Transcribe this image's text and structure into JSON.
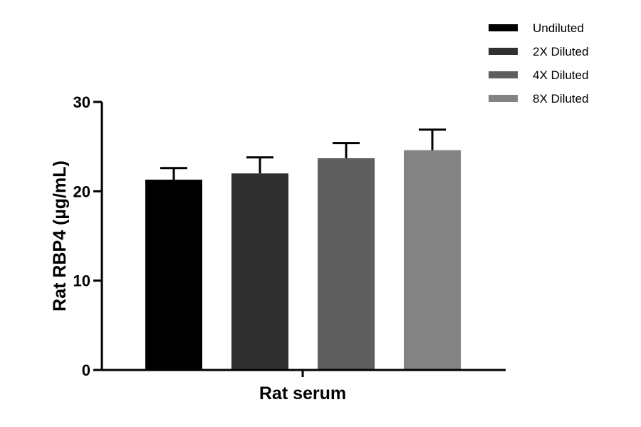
{
  "chart_data": {
    "type": "bar",
    "title": "",
    "xlabel": "Rat serum",
    "ylabel": "Rat RBP4 (µg/mL)",
    "ylim": [
      0,
      30
    ],
    "yticks": [
      0,
      10,
      20,
      30
    ],
    "grid": false,
    "legend_position": "top-right",
    "categories": [
      "Rat serum"
    ],
    "series": [
      {
        "name": "Undiluted",
        "values": [
          21.3
        ],
        "error": [
          1.3
        ],
        "color": "#000000"
      },
      {
        "name": "2X Diluted",
        "values": [
          22.0
        ],
        "error": [
          1.8
        ],
        "color": "#303030"
      },
      {
        "name": "4X Diluted",
        "values": [
          23.7
        ],
        "error": [
          1.7
        ],
        "color": "#5e5e5e"
      },
      {
        "name": "8X Diluted",
        "values": [
          24.6
        ],
        "error": [
          2.3
        ],
        "color": "#838383"
      }
    ]
  }
}
